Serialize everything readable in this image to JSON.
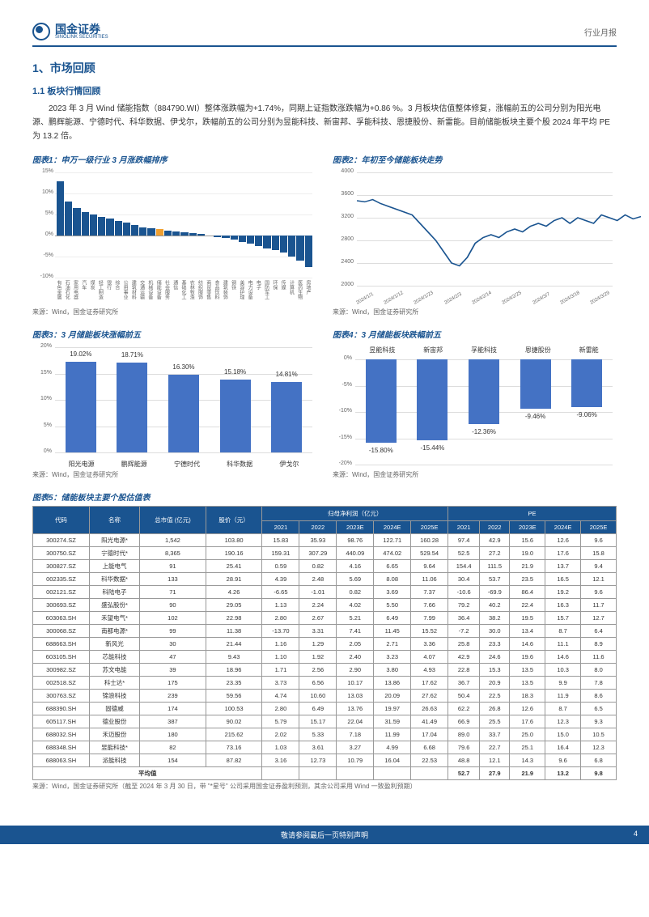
{
  "header": {
    "company": "国金证券",
    "company_en": "SINOLINK SECURITIES",
    "report_type": "行业月报"
  },
  "h1": "1、市场回顾",
  "h2": "1.1 板块行情回顾",
  "para": "2023 年 3 月 Wind 储能指数（884790.WI）整体涨跌幅为+1.74%，同期上证指数涨跌幅为+0.86 %。3 月板块估值整体修复，涨幅前五的公司分别为阳光电源、鹏辉能源、宁德时代、科华数据、伊戈尔，跌幅前五的公司分别为昱能科技、新宙邦、孚能科技、恩捷股份、新雷能。目前储能板块主要个股 2024 年平均 PE 为 13.2 倍。",
  "src": "来源：Wind，国金证券研究所",
  "src5": "来源：Wind，国金证券研究所（截至 2024 年 3 月 30 日，带 \"*星号\" 公司采用国金证券盈利预测，其余公司采用 Wind 一致盈利预期）",
  "chart1": {
    "title": "图表1：申万一级行业 3 月涨跌幅排序",
    "ylabels": [
      "15%",
      "10%",
      "5%",
      "0%",
      "-5%",
      "-10%"
    ],
    "values": [
      12.8,
      8,
      6.5,
      5.5,
      5,
      4.5,
      4,
      3.5,
      3,
      2.5,
      2,
      1.8,
      1.5,
      1.2,
      1,
      0.8,
      0.5,
      0.3,
      0,
      -0.3,
      -0.5,
      -1,
      -1.5,
      -2,
      -2.5,
      -3,
      -3.5,
      -4,
      -5,
      -6,
      -7.5
    ],
    "highlight_index": 12,
    "categories": [
      "有色金属",
      "石油石化",
      "家用电器",
      "汽车",
      "煤炭",
      "轻工制造",
      "银行",
      "综合",
      "公用事业",
      "建筑材料",
      "交通运输",
      "机械设备",
      "储能设备",
      "社会服务",
      "通信",
      "基础化工",
      "农林牧渔",
      "纺织服饰",
      "商贸零售",
      "食品饮料",
      "建筑装饰",
      "钢铁",
      "美容护理",
      "电力设备",
      "电子",
      "国防军工",
      "环保",
      "传媒",
      "计算机",
      "医药生物",
      "房地产"
    ],
    "bar_color": "#1a5490",
    "highlight_color": "#f0a030",
    "grid_color": "#dddddd"
  },
  "chart2": {
    "title": "图表2：年初至今储能板块走势",
    "ylabels": [
      "4000",
      "3600",
      "3200",
      "2800",
      "2400",
      "2000"
    ],
    "xlabels": [
      "2024/1/1",
      "2024/1/12",
      "2024/1/23",
      "2024/2/3",
      "2024/2/14",
      "2024/2/25",
      "2024/3/7",
      "2024/3/18",
      "2024/3/29"
    ],
    "line_color": "#1a5490",
    "ymin": 2000,
    "ymax": 4000,
    "points": [
      3500,
      3480,
      3520,
      3450,
      3400,
      3350,
      3300,
      3250,
      3100,
      2950,
      2800,
      2600,
      2400,
      2350,
      2500,
      2750,
      2850,
      2900,
      2850,
      2950,
      3000,
      2950,
      3050,
      3100,
      3050,
      3150,
      3200,
      3100,
      3200,
      3150,
      3100,
      3250,
      3200,
      3150,
      3250,
      3180,
      3220
    ]
  },
  "chart3": {
    "title": "图表3：3 月储能板块涨幅前五",
    "ylabels": [
      "20%",
      "15%",
      "10%",
      "5%",
      "0%"
    ],
    "bars": [
      {
        "label": "阳光电源",
        "value": 19.02,
        "text": "19.02%"
      },
      {
        "label": "鹏辉能源",
        "value": 18.71,
        "text": "18.71%"
      },
      {
        "label": "宁德时代",
        "value": 16.3,
        "text": "16.30%"
      },
      {
        "label": "科华数据",
        "value": 15.18,
        "text": "15.18%"
      },
      {
        "label": "伊戈尔",
        "value": 14.81,
        "text": "14.81%"
      }
    ],
    "bar_color": "#4472c4",
    "ymax": 22
  },
  "chart4": {
    "title": "图表4：3 月储能板块跌幅前五",
    "ylabels": [
      "0%",
      "-5%",
      "-10%",
      "-15%",
      "-20%"
    ],
    "bars": [
      {
        "label": "昱能科技",
        "value": -15.8,
        "text": "-15.80%"
      },
      {
        "label": "新宙邦",
        "value": -15.44,
        "text": "-15.44%"
      },
      {
        "label": "孚能科技",
        "value": -12.36,
        "text": "-12.36%"
      },
      {
        "label": "恩捷股份",
        "value": -9.46,
        "text": "-9.46%"
      },
      {
        "label": "新雷能",
        "value": -9.06,
        "text": "-9.06%"
      }
    ],
    "bar_color": "#4472c4",
    "ymin": -20
  },
  "chart5": {
    "title": "图表5：储能板块主要个股估值表"
  },
  "table": {
    "headers": {
      "code": "代码",
      "name": "名称",
      "mktcap": "总市值\n(亿元)",
      "price": "股价（元）",
      "profit": "归母净利润（亿元）",
      "pe": "PE",
      "y": [
        "2021",
        "2022",
        "2023E",
        "2024E",
        "2025E"
      ]
    },
    "avg_label": "平均值",
    "rows": [
      [
        "300274.SZ",
        "阳光电源*",
        "1,542",
        "103.80",
        "15.83",
        "35.93",
        "98.76",
        "122.71",
        "160.28",
        "97.4",
        "42.9",
        "15.6",
        "12.6",
        "9.6"
      ],
      [
        "300750.SZ",
        "宁德时代*",
        "8,365",
        "190.16",
        "159.31",
        "307.29",
        "440.09",
        "474.02",
        "529.54",
        "52.5",
        "27.2",
        "19.0",
        "17.6",
        "15.8"
      ],
      [
        "300827.SZ",
        "上能电气",
        "91",
        "25.41",
        "0.59",
        "0.82",
        "4.16",
        "6.65",
        "9.64",
        "154.4",
        "111.5",
        "21.9",
        "13.7",
        "9.4"
      ],
      [
        "002335.SZ",
        "科华数据*",
        "133",
        "28.91",
        "4.39",
        "2.48",
        "5.69",
        "8.08",
        "11.06",
        "30.4",
        "53.7",
        "23.5",
        "16.5",
        "12.1"
      ],
      [
        "002121.SZ",
        "科陆电子",
        "71",
        "4.26",
        "-6.65",
        "-1.01",
        "0.82",
        "3.69",
        "7.37",
        "-10.6",
        "-69.9",
        "86.4",
        "19.2",
        "9.6"
      ],
      [
        "300693.SZ",
        "盛弘股份*",
        "90",
        "29.05",
        "1.13",
        "2.24",
        "4.02",
        "5.50",
        "7.66",
        "79.2",
        "40.2",
        "22.4",
        "16.3",
        "11.7"
      ],
      [
        "603063.SH",
        "禾望电气*",
        "102",
        "22.98",
        "2.80",
        "2.67",
        "5.21",
        "6.49",
        "7.99",
        "36.4",
        "38.2",
        "19.5",
        "15.7",
        "12.7"
      ],
      [
        "300068.SZ",
        "南都电源*",
        "99",
        "11.38",
        "-13.70",
        "3.31",
        "7.41",
        "11.45",
        "15.52",
        "-7.2",
        "30.0",
        "13.4",
        "8.7",
        "6.4"
      ],
      [
        "688663.SH",
        "新风光",
        "30",
        "21.44",
        "1.16",
        "1.29",
        "2.05",
        "2.71",
        "3.36",
        "25.8",
        "23.3",
        "14.6",
        "11.1",
        "8.9"
      ],
      [
        "603105.SH",
        "芯能科技",
        "47",
        "9.43",
        "1.10",
        "1.92",
        "2.40",
        "3.23",
        "4.07",
        "42.9",
        "24.6",
        "19.6",
        "14.6",
        "11.6"
      ],
      [
        "300982.SZ",
        "苏文电能",
        "39",
        "18.96",
        "1.71",
        "2.56",
        "2.90",
        "3.80",
        "4.93",
        "22.8",
        "15.3",
        "13.5",
        "10.3",
        "8.0"
      ],
      [
        "002518.SZ",
        "科士达*",
        "175",
        "23.35",
        "3.73",
        "6.56",
        "10.17",
        "13.86",
        "17.62",
        "36.7",
        "20.9",
        "13.5",
        "9.9",
        "7.8"
      ],
      [
        "300763.SZ",
        "锦浪科技",
        "239",
        "59.56",
        "4.74",
        "10.60",
        "13.03",
        "20.09",
        "27.62",
        "50.4",
        "22.5",
        "18.3",
        "11.9",
        "8.6"
      ],
      [
        "688390.SH",
        "固德威",
        "174",
        "100.53",
        "2.80",
        "6.49",
        "13.76",
        "19.97",
        "26.63",
        "62.2",
        "26.8",
        "12.6",
        "8.7",
        "6.5"
      ],
      [
        "605117.SH",
        "德业股份",
        "387",
        "90.02",
        "5.79",
        "15.17",
        "22.04",
        "31.59",
        "41.49",
        "66.9",
        "25.5",
        "17.6",
        "12.3",
        "9.3"
      ],
      [
        "688032.SH",
        "禾迈股份",
        "180",
        "215.62",
        "2.02",
        "5.33",
        "7.18",
        "11.99",
        "17.04",
        "89.0",
        "33.7",
        "25.0",
        "15.0",
        "10.5"
      ],
      [
        "688348.SH",
        "昱能科技*",
        "82",
        "73.16",
        "1.03",
        "3.61",
        "3.27",
        "4.99",
        "6.68",
        "79.6",
        "22.7",
        "25.1",
        "16.4",
        "12.3"
      ],
      [
        "688063.SH",
        "派能科技",
        "154",
        "87.82",
        "3.16",
        "12.73",
        "10.79",
        "16.04",
        "22.53",
        "48.8",
        "12.1",
        "14.3",
        "9.6",
        "6.8"
      ]
    ],
    "avg": [
      "",
      "",
      "",
      "",
      "",
      "",
      "",
      "",
      "",
      "52.7",
      "27.9",
      "21.9",
      "13.2",
      "9.8"
    ]
  },
  "footer": {
    "disclaimer": "敬请参阅最后一页特别声明",
    "page": "4"
  }
}
